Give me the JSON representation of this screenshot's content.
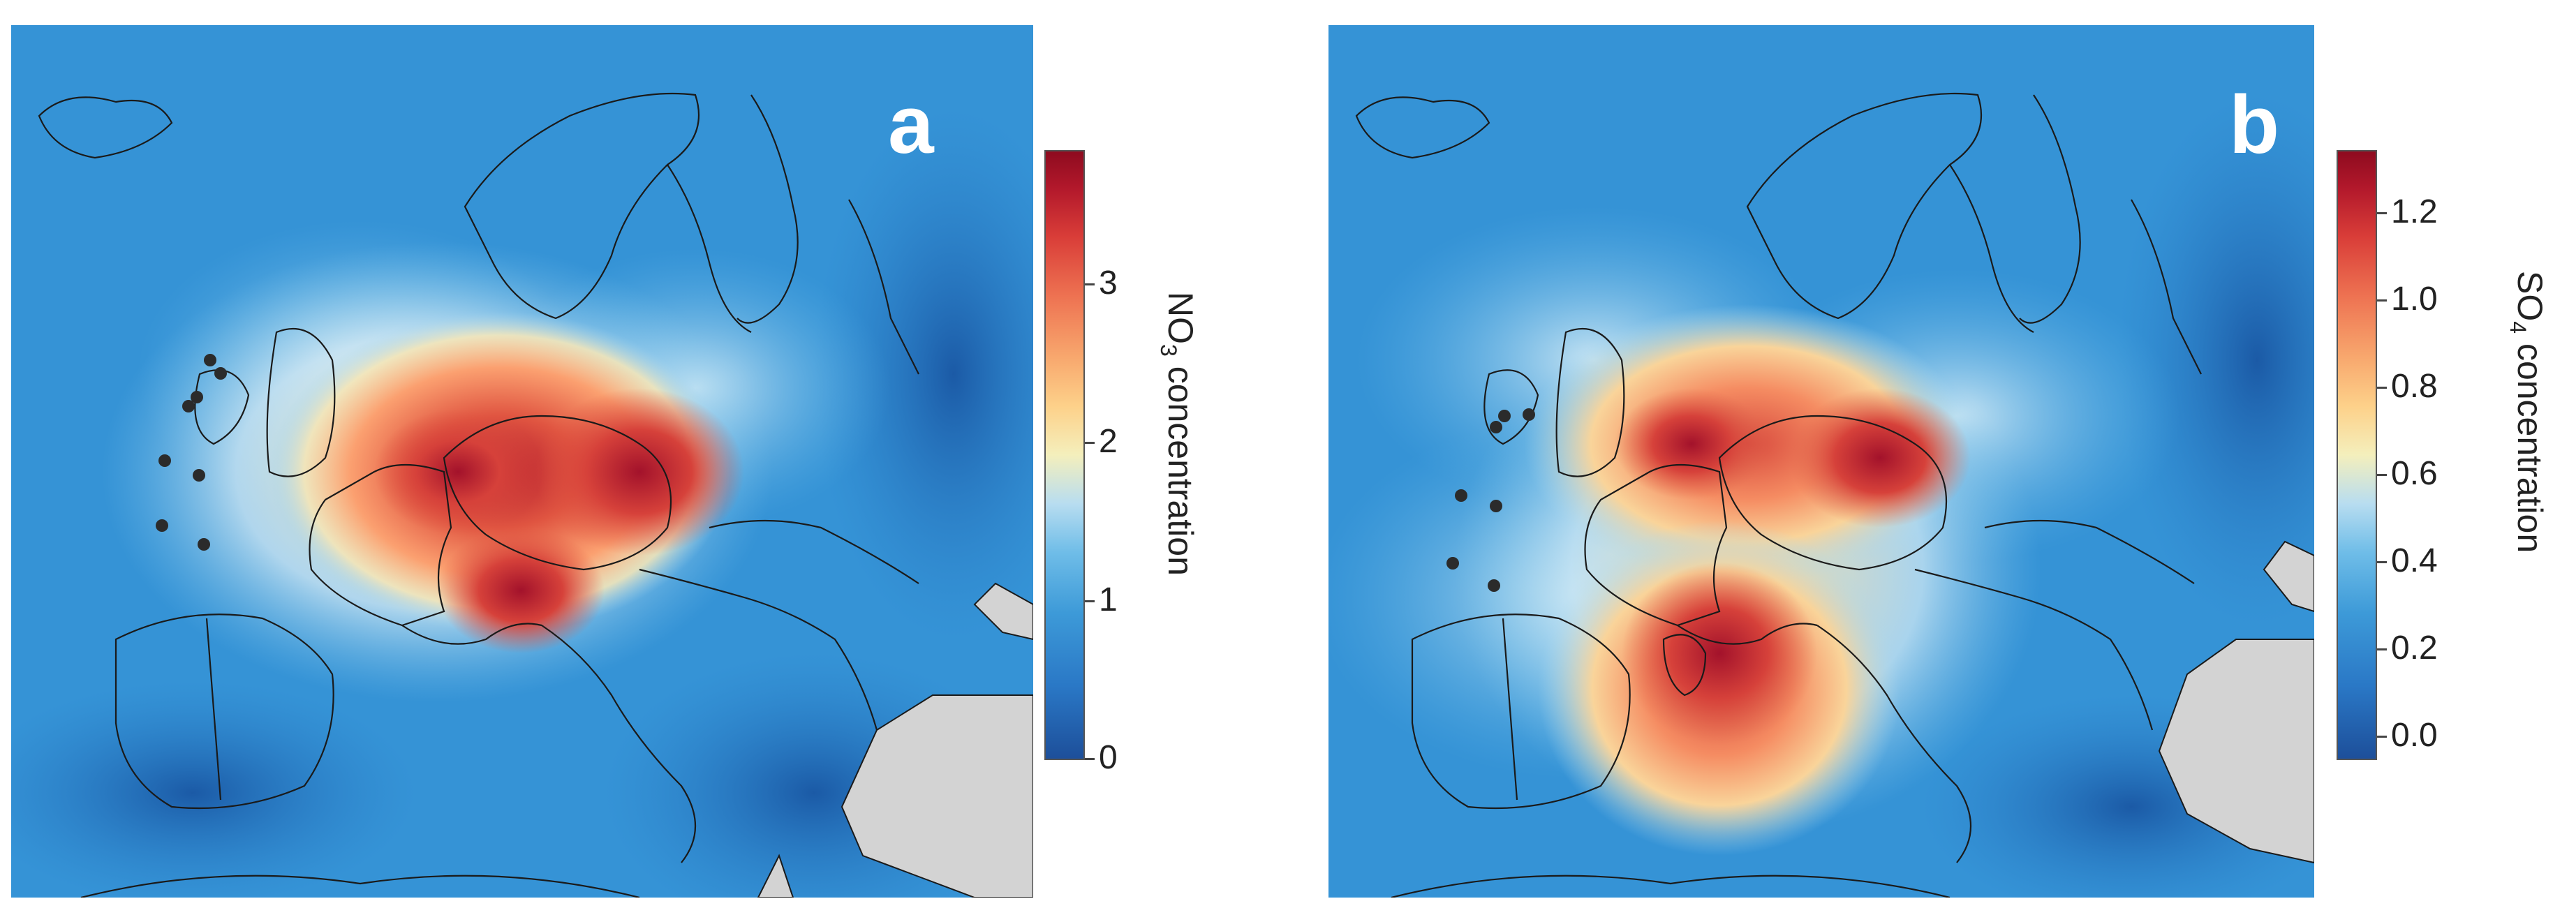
{
  "panels": [
    {
      "letter": "a",
      "colorbar": {
        "label_prefix": "NO",
        "label_sub": "3",
        "label_suffix": " concentration",
        "ticks": [
          "0",
          "1",
          "2",
          "3"
        ],
        "tick_values": [
          0,
          1,
          2,
          3
        ],
        "range": [
          0,
          3.85
        ],
        "colors": [
          "#1d4f9a",
          "#3d9ad8",
          "#f4efbc",
          "#ee7352",
          "#8e0b1f"
        ]
      },
      "sample_sites": 8
    },
    {
      "letter": "b",
      "colorbar": {
        "label_prefix": "SO",
        "label_sub": "4",
        "label_suffix": " concentration",
        "ticks": [
          "0.0",
          "0.2",
          "0.4",
          "0.6",
          "0.8",
          "1.0",
          "1.2"
        ],
        "tick_values": [
          0,
          0.2,
          0.4,
          0.6,
          0.8,
          1.0,
          1.2
        ],
        "range": [
          0,
          1.33
        ],
        "colors": [
          "#1d4f9a",
          "#3d9ad8",
          "#f4efbc",
          "#ee7352",
          "#8e0b1f"
        ]
      },
      "sample_sites": 7
    }
  ]
}
